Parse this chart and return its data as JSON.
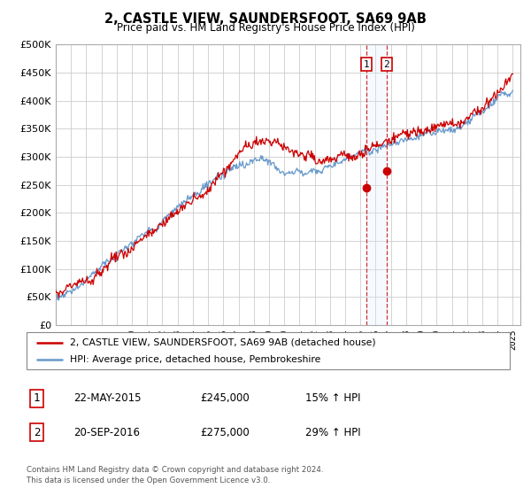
{
  "title": "2, CASTLE VIEW, SAUNDERSFOOT, SA69 9AB",
  "subtitle": "Price paid vs. HM Land Registry's House Price Index (HPI)",
  "legend_line1": "2, CASTLE VIEW, SAUNDERSFOOT, SA69 9AB (detached house)",
  "legend_line2": "HPI: Average price, detached house, Pembrokeshire",
  "sale1_label": "1",
  "sale1_date": "22-MAY-2015",
  "sale1_price": "£245,000",
  "sale1_hpi": "15% ↑ HPI",
  "sale2_label": "2",
  "sale2_date": "20-SEP-2016",
  "sale2_price": "£275,000",
  "sale2_hpi": "29% ↑ HPI",
  "footer": "Contains HM Land Registry data © Crown copyright and database right 2024.\nThis data is licensed under the Open Government Licence v3.0.",
  "hpi_color": "#6699cc",
  "price_color": "#cc0000",
  "sale_marker_color": "#cc0000",
  "vline_color": "#cc3333",
  "vline_fill_color": "#ddeeff",
  "ylim_min": 0,
  "ylim_max": 500000,
  "yticks": [
    0,
    50000,
    100000,
    150000,
    200000,
    250000,
    300000,
    350000,
    400000,
    450000,
    500000
  ],
  "sale1_x": 2015.39,
  "sale2_x": 2016.72,
  "sale1_y": 245000,
  "sale2_y": 275000,
  "xmin": 1995,
  "xmax": 2025
}
